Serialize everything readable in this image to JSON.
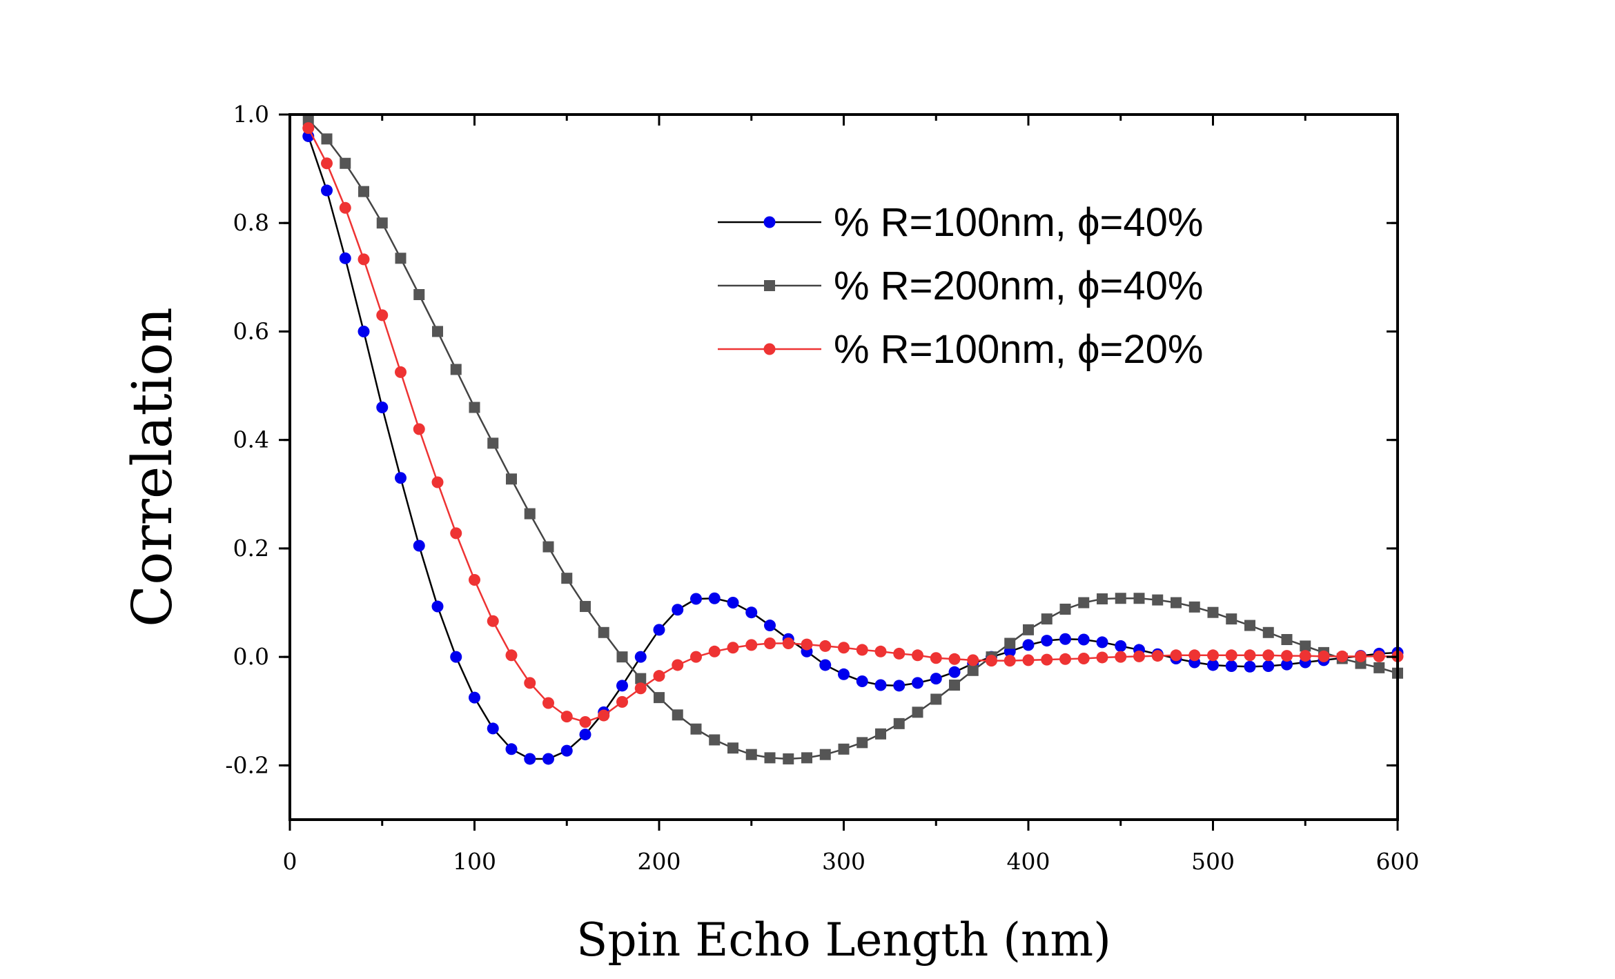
{
  "chart_data": {
    "type": "line",
    "xlabel": "Spin Echo Length (nm)",
    "ylabel": "Correlation",
    "xlim": [
      0,
      600
    ],
    "ylim": [
      -0.3,
      1.0
    ],
    "xticks": [
      0,
      100,
      200,
      300,
      400,
      500,
      600
    ],
    "xtick_labels": [
      "0",
      "100",
      "200",
      "300",
      "400",
      "500",
      "600"
    ],
    "yticks": [
      -0.2,
      0.0,
      0.2,
      0.4,
      0.6,
      0.8,
      1.0
    ],
    "ytick_labels": [
      "-0.2",
      "0.0",
      "0.2",
      "0.4",
      "0.6",
      "0.8",
      "1.0"
    ],
    "grid": false,
    "legend_position": "top-right",
    "x": [
      10,
      20,
      30,
      40,
      50,
      60,
      70,
      80,
      90,
      100,
      110,
      120,
      130,
      140,
      150,
      160,
      170,
      180,
      190,
      200,
      210,
      220,
      230,
      240,
      250,
      260,
      270,
      280,
      290,
      300,
      310,
      320,
      330,
      340,
      350,
      360,
      370,
      380,
      390,
      400,
      410,
      420,
      430,
      440,
      450,
      460,
      470,
      480,
      490,
      500,
      510,
      520,
      530,
      540,
      550,
      560,
      570,
      580,
      590,
      600
    ],
    "series": [
      {
        "name": "% R=100nm, ϕ=40%",
        "marker": "circle",
        "line_color": "#000000",
        "marker_color": "#0000ee",
        "values": [
          0.96,
          0.86,
          0.735,
          0.6,
          0.46,
          0.33,
          0.205,
          0.093,
          0.0,
          -0.075,
          -0.132,
          -0.17,
          -0.188,
          -0.188,
          -0.173,
          -0.143,
          -0.102,
          -0.053,
          0.0,
          0.05,
          0.087,
          0.107,
          0.108,
          0.1,
          0.082,
          0.058,
          0.033,
          0.01,
          -0.015,
          -0.032,
          -0.045,
          -0.052,
          -0.053,
          -0.048,
          -0.04,
          -0.028,
          -0.012,
          0.0,
          0.01,
          0.022,
          0.03,
          0.033,
          0.032,
          0.027,
          0.02,
          0.013,
          0.005,
          -0.003,
          -0.01,
          -0.015,
          -0.017,
          -0.018,
          -0.017,
          -0.014,
          -0.01,
          -0.006,
          -0.002,
          0.002,
          0.006,
          0.008
        ]
      },
      {
        "name": "% R=200nm, ϕ=40%",
        "marker": "square",
        "line_color": "#444444",
        "marker_color": "#555555",
        "values": [
          0.99,
          0.955,
          0.91,
          0.858,
          0.8,
          0.735,
          0.668,
          0.6,
          0.53,
          0.46,
          0.394,
          0.328,
          0.264,
          0.203,
          0.145,
          0.093,
          0.045,
          0.0,
          -0.04,
          -0.075,
          -0.107,
          -0.133,
          -0.153,
          -0.168,
          -0.18,
          -0.186,
          -0.188,
          -0.186,
          -0.18,
          -0.17,
          -0.158,
          -0.142,
          -0.123,
          -0.102,
          -0.078,
          -0.052,
          -0.025,
          0.0,
          0.025,
          0.05,
          0.07,
          0.088,
          0.1,
          0.107,
          0.108,
          0.108,
          0.105,
          0.1,
          0.092,
          0.082,
          0.07,
          0.058,
          0.045,
          0.032,
          0.02,
          0.008,
          -0.003,
          -0.012,
          -0.02,
          -0.03
        ]
      },
      {
        "name": "% R=100nm, ϕ=20%",
        "marker": "circle",
        "line_color": "#ee3333",
        "marker_color": "#ee3333",
        "values": [
          0.975,
          0.91,
          0.828,
          0.733,
          0.63,
          0.525,
          0.42,
          0.322,
          0.228,
          0.142,
          0.066,
          0.003,
          -0.048,
          -0.085,
          -0.11,
          -0.12,
          -0.108,
          -0.083,
          -0.058,
          -0.035,
          -0.015,
          0.0,
          0.01,
          0.017,
          0.022,
          0.025,
          0.025,
          0.023,
          0.02,
          0.017,
          0.013,
          0.01,
          0.006,
          0.003,
          -0.002,
          -0.004,
          -0.006,
          -0.007,
          -0.007,
          -0.006,
          -0.005,
          -0.004,
          -0.003,
          -0.001,
          0.0,
          0.001,
          0.002,
          0.003,
          0.003,
          0.003,
          0.003,
          0.003,
          0.003,
          0.002,
          0.002,
          0.001,
          0.001,
          0.001,
          0.001,
          0.001
        ]
      }
    ]
  }
}
